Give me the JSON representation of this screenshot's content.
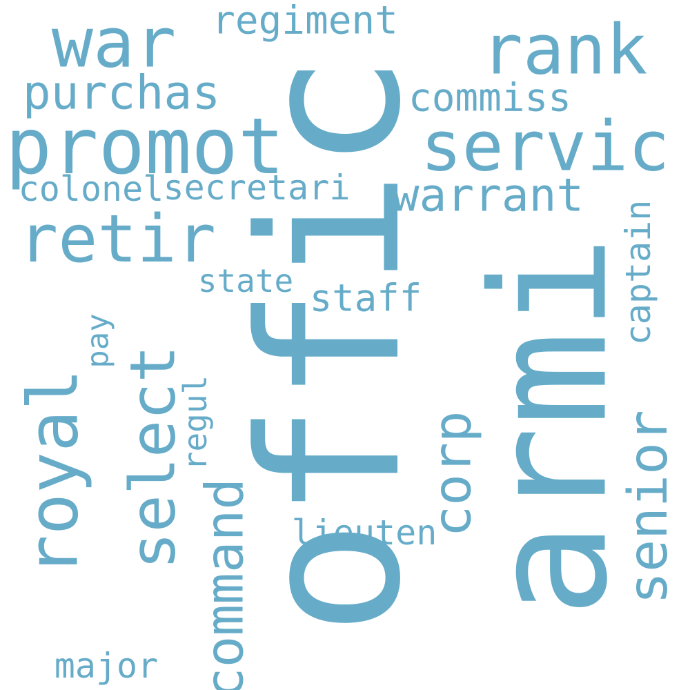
{
  "color": "#66acc9",
  "words": [
    "offic",
    "armi",
    "promot",
    "servic",
    "war",
    "rank",
    "retir",
    "regiment",
    "purchas",
    "commiss",
    "colonel",
    "secretari",
    "warrant",
    "state",
    "staff",
    "lieuten",
    "major",
    "royal",
    "select",
    "corp",
    "senior",
    "captain",
    "pay",
    "regul",
    "command"
  ]
}
